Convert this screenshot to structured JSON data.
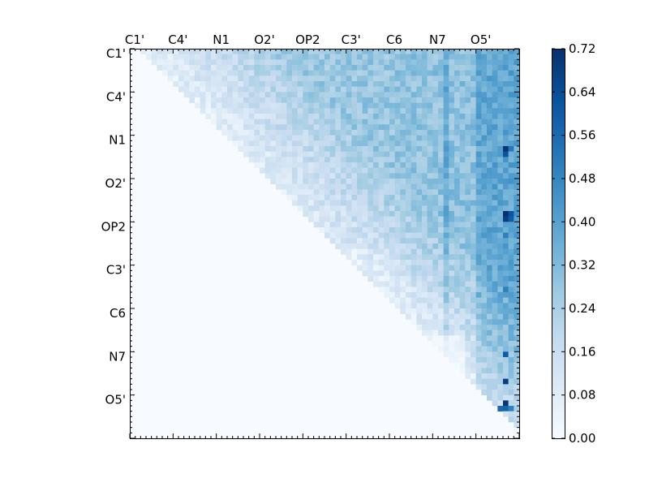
{
  "chart_data": {
    "type": "heatmap",
    "title": "",
    "xlabel": "",
    "ylabel": "",
    "colormap": "Blues",
    "triangle": "upper",
    "grid_size": 72,
    "x_tick_labels": [
      "C1'",
      "C4'",
      "N1",
      "O2'",
      "OP2",
      "C3'",
      "C6",
      "N7",
      "O5'"
    ],
    "y_tick_labels": [
      "C1'",
      "C4'",
      "N1",
      "O2'",
      "OP2",
      "C3'",
      "C6",
      "N7",
      "O5'"
    ],
    "tick_index_positions": [
      0,
      8,
      16,
      24,
      32,
      40,
      48,
      56,
      64
    ],
    "colorbar": {
      "min": 0.0,
      "max": 0.72,
      "tick_values": [
        0.0,
        0.08,
        0.16,
        0.24,
        0.32,
        0.4,
        0.48,
        0.56,
        0.64,
        0.72
      ],
      "tick_labels": [
        "0.00",
        "0.08",
        "0.16",
        "0.24",
        "0.32",
        "0.40",
        "0.48",
        "0.56",
        "0.64",
        "0.72"
      ]
    },
    "highlight_cells": [
      {
        "row": 18,
        "col": 69,
        "value": 0.7
      },
      {
        "row": 19,
        "col": 69,
        "value": 0.62
      },
      {
        "row": 30,
        "col": 69,
        "value": 0.72
      },
      {
        "row": 31,
        "col": 69,
        "value": 0.68
      },
      {
        "row": 30,
        "col": 70,
        "value": 0.62
      },
      {
        "row": 31,
        "col": 70,
        "value": 0.6
      },
      {
        "row": 34,
        "col": 69,
        "value": 0.5
      },
      {
        "row": 44,
        "col": 69,
        "value": 0.5
      },
      {
        "row": 56,
        "col": 69,
        "value": 0.6
      },
      {
        "row": 61,
        "col": 69,
        "value": 0.68
      },
      {
        "row": 65,
        "col": 69,
        "value": 0.7
      },
      {
        "row": 66,
        "col": 68,
        "value": 0.56
      },
      {
        "row": 66,
        "col": 69,
        "value": 0.58
      },
      {
        "row": 66,
        "col": 70,
        "value": 0.5
      },
      {
        "row": 18,
        "col": 70,
        "value": 0.52
      }
    ],
    "column_band_values": [
      {
        "col_start": 67,
        "col_end": 70,
        "value": 0.38
      },
      {
        "col_start": 58,
        "col_end": 58,
        "value": 0.4
      }
    ]
  }
}
